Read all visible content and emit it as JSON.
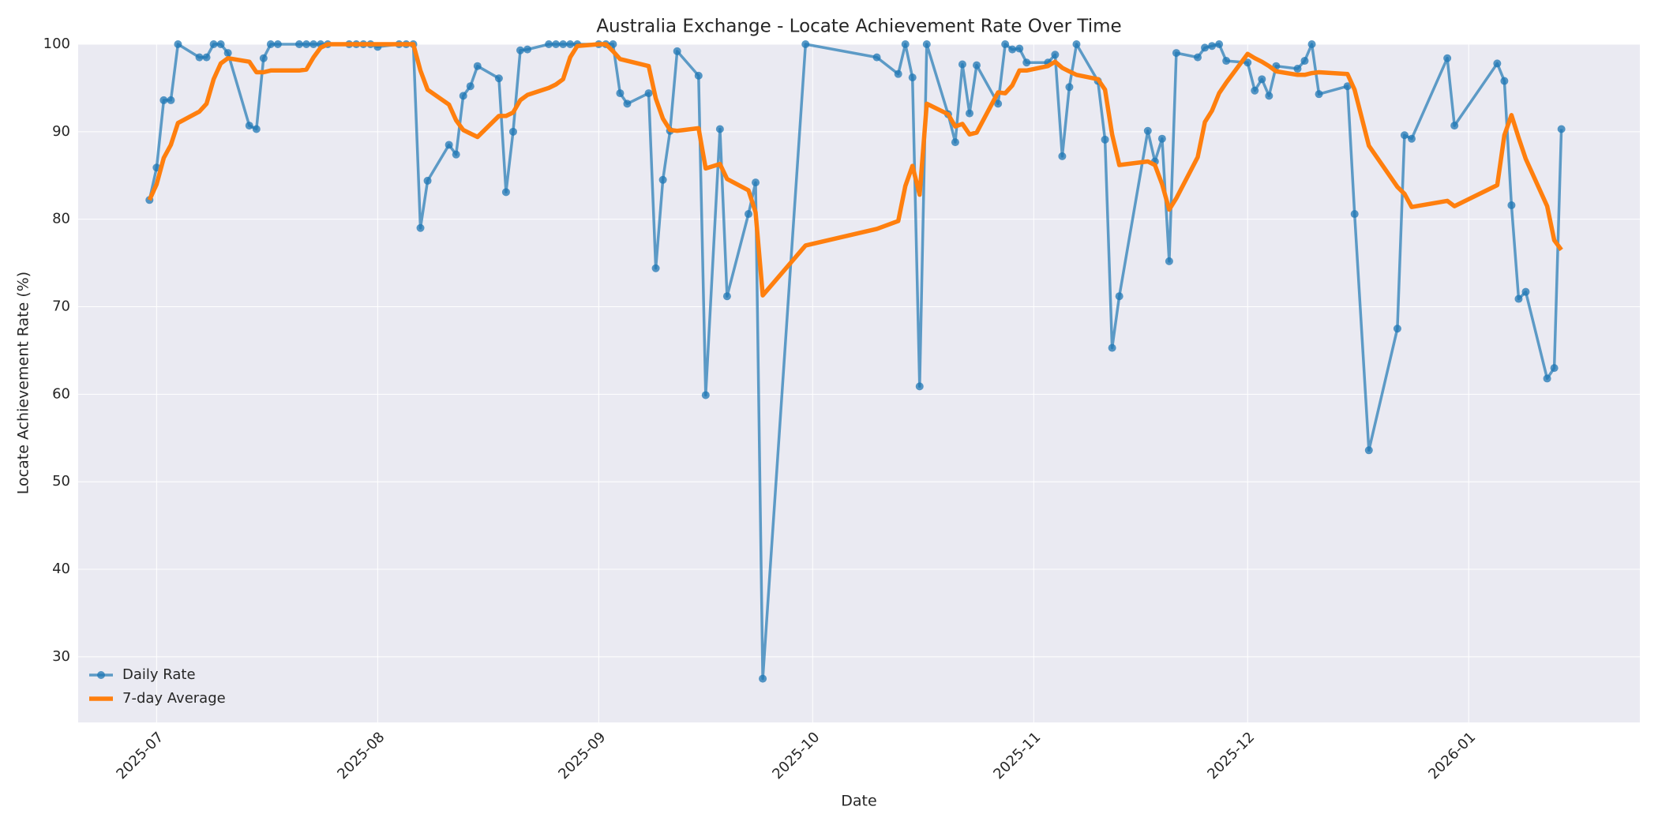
{
  "chart_data": {
    "type": "line",
    "title": "Australia Exchange - Locate Achievement Rate Over Time",
    "xlabel": "Date",
    "ylabel": "Locate Achievement Rate (%)",
    "x": [
      "2025-06-30",
      "2025-07-01",
      "2025-07-02",
      "2025-07-03",
      "2025-07-04",
      "2025-07-07",
      "2025-07-08",
      "2025-07-09",
      "2025-07-10",
      "2025-07-11",
      "2025-07-14",
      "2025-07-15",
      "2025-07-16",
      "2025-07-17",
      "2025-07-18",
      "2025-07-21",
      "2025-07-22",
      "2025-07-23",
      "2025-07-24",
      "2025-07-25",
      "2025-07-28",
      "2025-07-29",
      "2025-07-30",
      "2025-07-31",
      "2025-08-01",
      "2025-08-04",
      "2025-08-05",
      "2025-08-06",
      "2025-08-07",
      "2025-08-08",
      "2025-08-11",
      "2025-08-12",
      "2025-08-13",
      "2025-08-14",
      "2025-08-15",
      "2025-08-18",
      "2025-08-19",
      "2025-08-20",
      "2025-08-21",
      "2025-08-22",
      "2025-08-25",
      "2025-08-26",
      "2025-08-27",
      "2025-08-28",
      "2025-08-29",
      "2025-09-01",
      "2025-09-02",
      "2025-09-03",
      "2025-09-04",
      "2025-09-05",
      "2025-09-08",
      "2025-09-09",
      "2025-09-10",
      "2025-09-11",
      "2025-09-12",
      "2025-09-15",
      "2025-09-16",
      "2025-09-18",
      "2025-09-19",
      "2025-09-22",
      "2025-09-23",
      "2025-09-24",
      "2025-09-30",
      "2025-10-10",
      "2025-10-13",
      "2025-10-14",
      "2025-10-15",
      "2025-10-16",
      "2025-10-17",
      "2025-10-20",
      "2025-10-21",
      "2025-10-22",
      "2025-10-23",
      "2025-10-24",
      "2025-10-27",
      "2025-10-28",
      "2025-10-29",
      "2025-10-30",
      "2025-10-31",
      "2025-11-03",
      "2025-11-04",
      "2025-11-05",
      "2025-11-06",
      "2025-11-07",
      "2025-11-10",
      "2025-11-11",
      "2025-11-12",
      "2025-11-13",
      "2025-11-17",
      "2025-11-18",
      "2025-11-19",
      "2025-11-20",
      "2025-11-21",
      "2025-11-24",
      "2025-11-25",
      "2025-11-26",
      "2025-11-27",
      "2025-11-28",
      "2025-12-01",
      "2025-12-02",
      "2025-12-03",
      "2025-12-04",
      "2025-12-05",
      "2025-12-08",
      "2025-12-09",
      "2025-12-10",
      "2025-12-11",
      "2025-12-15",
      "2025-12-16",
      "2025-12-18",
      "2025-12-22",
      "2025-12-23",
      "2025-12-24",
      "2025-12-29",
      "2025-12-30",
      "2026-01-05",
      "2026-01-06",
      "2026-01-07",
      "2026-01-08",
      "2026-01-09",
      "2026-01-12",
      "2026-01-13",
      "2026-01-14"
    ],
    "series": [
      {
        "name": "Daily Rate",
        "color": "#1f77b4",
        "marker": true,
        "values": [
          82.2,
          85.9,
          93.6,
          93.6,
          100,
          98.5,
          98.5,
          100,
          100,
          99.0,
          90.7,
          90.3,
          98.4,
          100,
          100,
          100,
          100,
          100,
          100,
          100,
          100,
          100,
          100,
          100,
          99.7,
          100,
          100,
          100,
          79.0,
          84.4,
          88.5,
          87.4,
          94.1,
          95.2,
          97.5,
          96.1,
          83.1,
          90.0,
          99.3,
          99.4,
          100,
          100,
          100,
          100,
          100,
          100,
          100,
          100,
          94.4,
          93.2,
          94.4,
          74.4,
          84.5,
          90.1,
          99.2,
          96.4,
          59.9,
          90.3,
          71.2,
          80.6,
          84.2,
          27.5,
          100,
          98.5,
          96.6,
          100,
          96.2,
          60.9,
          100,
          92.0,
          88.8,
          97.7,
          92.1,
          97.6,
          93.2,
          100,
          99.4,
          99.5,
          97.9,
          97.9,
          98.8,
          87.2,
          95.1,
          100,
          95.8,
          89.1,
          65.3,
          71.2,
          90.1,
          86.6,
          89.2,
          75.2,
          99.0,
          98.5,
          99.6,
          99.8,
          100,
          98.1,
          97.9,
          94.7,
          96.0,
          94.1,
          97.5,
          97.2,
          98.1,
          100,
          94.3,
          95.2,
          80.6,
          53.6,
          67.5,
          89.6,
          89.2,
          98.4,
          90.7,
          97.8,
          95.8,
          81.6,
          70.9,
          71.7,
          61.8,
          63.0,
          90.3
        ]
      },
      {
        "name": "7-day Average",
        "color": "#ff7f0e",
        "marker": false,
        "values": [
          82.2,
          84.0,
          87.0,
          88.5,
          91.0,
          92.3,
          93.2,
          96.0,
          97.8,
          98.4,
          98.0,
          96.8,
          96.8,
          97.0,
          97.0,
          97.0,
          97.1,
          98.5,
          99.6,
          100,
          100,
          100,
          100,
          100,
          100,
          100,
          100,
          100,
          97.0,
          94.8,
          93.1,
          91.3,
          90.2,
          89.8,
          89.4,
          91.8,
          91.8,
          92.2,
          93.6,
          94.2,
          95.0,
          95.4,
          96.0,
          98.5,
          99.8,
          100,
          100,
          99.2,
          98.3,
          98.1,
          97.5,
          93.8,
          91.5,
          90.2,
          90.1,
          90.4,
          85.8,
          86.3,
          84.6,
          83.3,
          80.8,
          71.3,
          77.0,
          78.9,
          79.8,
          83.8,
          86.1,
          82.8,
          93.2,
          92.0,
          90.6,
          90.9,
          89.7,
          89.9,
          94.5,
          94.4,
          95.3,
          97.0,
          97.0,
          97.5,
          98.0,
          97.3,
          96.9,
          96.5,
          96.0,
          94.8,
          89.7,
          86.2,
          86.6,
          86.2,
          84.0,
          81.1,
          82.4,
          87.1,
          91.1,
          92.4,
          94.4,
          95.6,
          98.9,
          98.4,
          98.0,
          97.5,
          96.9,
          96.5,
          96.5,
          96.7,
          96.8,
          96.6,
          94.8,
          88.4,
          83.7,
          82.9,
          81.4,
          82.1,
          81.5,
          83.9,
          89.6,
          91.9,
          89.3,
          86.9,
          81.5,
          77.6,
          76.5
        ]
      }
    ],
    "xlim": [
      "2025-06-20",
      "2026-01-25"
    ],
    "xticks": [
      "2025-07",
      "2025-08",
      "2025-09",
      "2025-10",
      "2025-11",
      "2025-12",
      "2026-01"
    ],
    "ylim": [
      22.5,
      100
    ],
    "yticks": [
      30,
      40,
      50,
      60,
      70,
      80,
      90,
      100
    ],
    "grid": true,
    "legend": "lower left"
  }
}
